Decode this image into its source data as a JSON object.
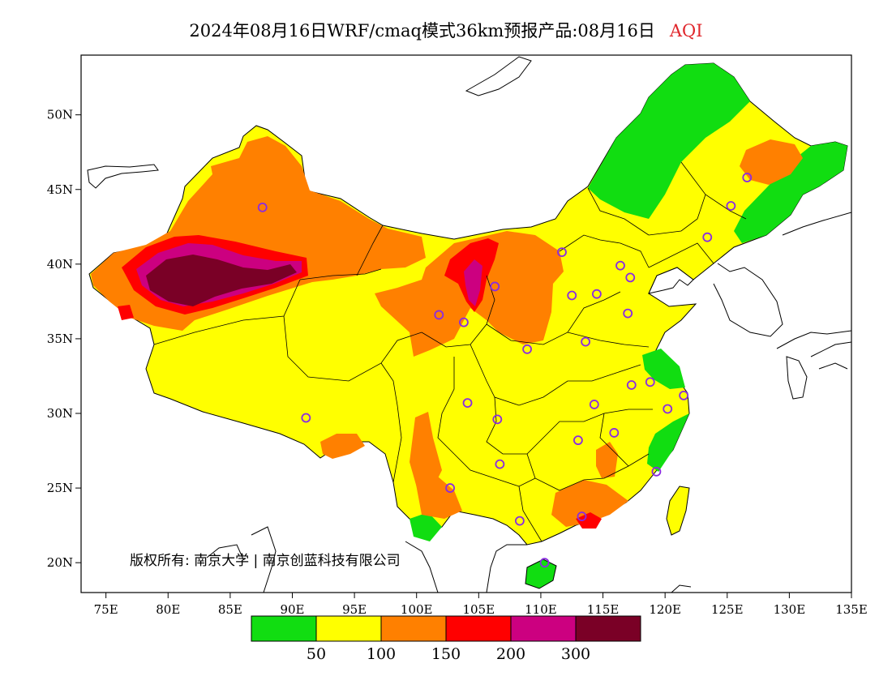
{
  "title": {
    "text": "2024年08月16日WRF/cmaq模式36km预报产品:08月16日",
    "accent": "AQI"
  },
  "map": {
    "lon_range": [
      73,
      135
    ],
    "lat_range": [
      18,
      54
    ],
    "x_ticks": [
      "75E",
      "80E",
      "85E",
      "90E",
      "95E",
      "100E",
      "105E",
      "110E",
      "115E",
      "120E",
      "125E",
      "130E",
      "135E"
    ],
    "x_tick_values": [
      75,
      80,
      85,
      90,
      95,
      100,
      105,
      110,
      115,
      120,
      125,
      130,
      135
    ],
    "y_ticks": [
      "20N",
      "25N",
      "30N",
      "35N",
      "40N",
      "45N",
      "50N"
    ],
    "y_tick_values": [
      20,
      25,
      30,
      35,
      40,
      45,
      50
    ],
    "copyright": "版权所有: 南京大学 | 南京创蓝科技有限公司"
  },
  "legend": {
    "colors": [
      "#11dd11",
      "#ffff00",
      "#ff8000",
      "#ff0000",
      "#cc0080",
      "#7a0026"
    ],
    "labels": [
      "50",
      "100",
      "150",
      "200",
      "300"
    ]
  },
  "colors": {
    "aqi_good": "#11dd11",
    "aqi_moderate": "#ffff00",
    "aqi_usg": "#ff8000",
    "aqi_unhealthy": "#ff0000",
    "aqi_very_unhealthy": "#cc0080",
    "aqi_hazardous": "#7a0026",
    "city_marker": "#8a2be2"
  }
}
